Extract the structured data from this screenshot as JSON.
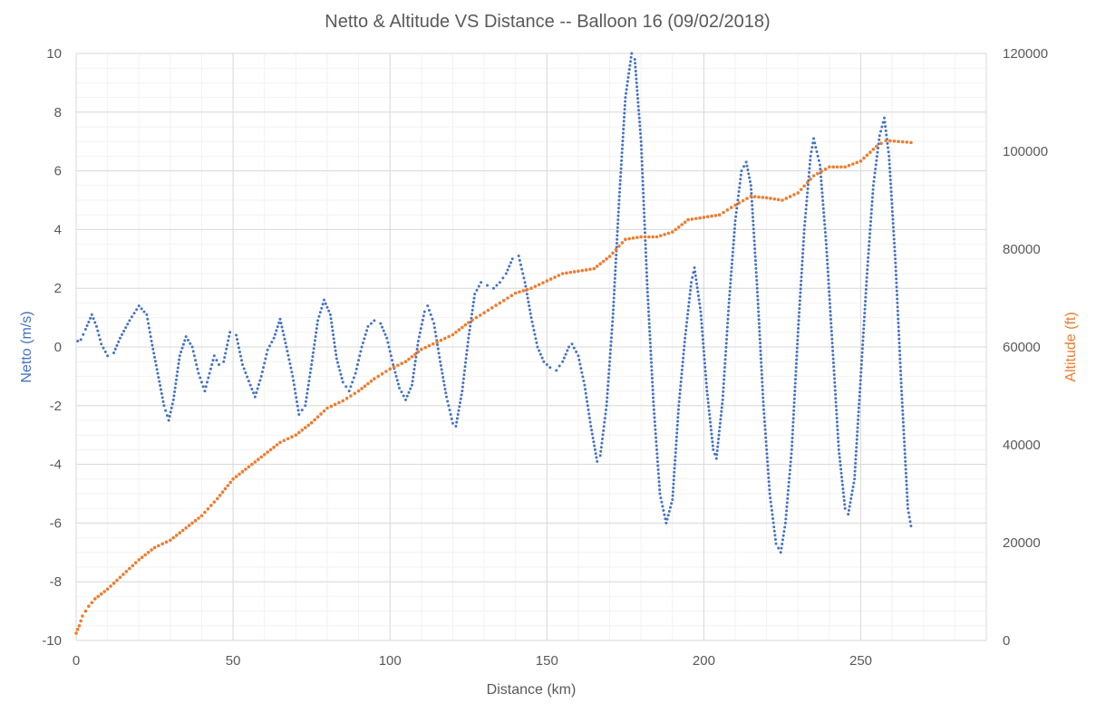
{
  "chart_data": {
    "type": "scatter",
    "title": "Netto & Altitude VS Distance -- Balloon 16 (09/02/2018)",
    "xlabel": "Distance (km)",
    "ylabel_left": "Netto (m/s)",
    "ylabel_right": "Altitude (ft)",
    "xlim": [
      0,
      290
    ],
    "ylim_left": [
      -10,
      10
    ],
    "ylim_right": [
      0,
      120000
    ],
    "x_ticks": [
      "0",
      "50",
      "100",
      "150",
      "200",
      "250"
    ],
    "y_left_ticks": [
      "-10",
      "-8",
      "-6",
      "-4",
      "-2",
      "0",
      "2",
      "4",
      "6",
      "8",
      "10"
    ],
    "y_right_ticks": [
      "0",
      "20000",
      "40000",
      "60000",
      "80000",
      "100000",
      "120000"
    ],
    "grid": true,
    "minor_grid": true,
    "legend": "none",
    "series": [
      {
        "axis": "left",
        "color": "#4472C4",
        "marker": "dot",
        "points": [
          [
            0.5,
            0.2
          ],
          [
            1.5,
            0.25
          ],
          [
            3,
            0.6
          ],
          [
            5,
            1.1
          ],
          [
            6.5,
            0.7
          ],
          [
            8,
            0.1
          ],
          [
            10,
            -0.3
          ],
          [
            12,
            -0.2
          ],
          [
            14,
            0.3
          ],
          [
            17,
            0.9
          ],
          [
            20,
            1.4
          ],
          [
            22.5,
            1.1
          ],
          [
            24,
            0.2
          ],
          [
            26,
            -0.9
          ],
          [
            28,
            -2.0
          ],
          [
            29.5,
            -2.5
          ],
          [
            31,
            -1.8
          ],
          [
            33,
            -0.3
          ],
          [
            35,
            0.35
          ],
          [
            37,
            0.0
          ],
          [
            39,
            -0.9
          ],
          [
            41,
            -1.5
          ],
          [
            42.5,
            -0.9
          ],
          [
            44,
            -0.3
          ],
          [
            45.5,
            -0.6
          ],
          [
            47,
            -0.5
          ],
          [
            49,
            0.5
          ],
          [
            51,
            0.4
          ],
          [
            53,
            -0.6
          ],
          [
            55.5,
            -1.3
          ],
          [
            57,
            -1.7
          ],
          [
            59,
            -1.0
          ],
          [
            61,
            -0.1
          ],
          [
            63,
            0.3
          ],
          [
            65,
            0.95
          ],
          [
            67,
            0.0
          ],
          [
            69,
            -1.0
          ],
          [
            71,
            -2.3
          ],
          [
            73,
            -2.0
          ],
          [
            75,
            -0.6
          ],
          [
            77,
            0.9
          ],
          [
            79,
            1.6
          ],
          [
            81,
            1.1
          ],
          [
            83,
            -0.4
          ],
          [
            85,
            -1.2
          ],
          [
            87,
            -1.5
          ],
          [
            89,
            -0.9
          ],
          [
            91,
            0.0
          ],
          [
            93,
            0.7
          ],
          [
            95,
            0.9
          ],
          [
            97,
            0.8
          ],
          [
            99,
            0.3
          ],
          [
            101,
            -0.6
          ],
          [
            103,
            -1.4
          ],
          [
            105,
            -1.8
          ],
          [
            107,
            -1.3
          ],
          [
            109,
            0.2
          ],
          [
            111,
            1.2
          ],
          [
            112,
            1.4
          ],
          [
            114,
            0.8
          ],
          [
            116,
            -0.5
          ],
          [
            118,
            -1.7
          ],
          [
            120,
            -2.6
          ],
          [
            121,
            -2.7
          ],
          [
            123,
            -1.5
          ],
          [
            125,
            0.3
          ],
          [
            127,
            1.8
          ],
          [
            129,
            2.2
          ],
          [
            131,
            2.1
          ],
          [
            133,
            2.0
          ],
          [
            135,
            2.2
          ],
          [
            137,
            2.5
          ],
          [
            139,
            3.0
          ],
          [
            141,
            3.1
          ],
          [
            143,
            2.2
          ],
          [
            145,
            1.0
          ],
          [
            147,
            0.0
          ],
          [
            149,
            -0.5
          ],
          [
            151,
            -0.7
          ],
          [
            153,
            -0.8
          ],
          [
            155,
            -0.5
          ],
          [
            157,
            0.0
          ],
          [
            158,
            0.1
          ],
          [
            160,
            -0.3
          ],
          [
            162,
            -1.3
          ],
          [
            164,
            -2.7
          ],
          [
            166,
            -3.9
          ],
          [
            167,
            -3.7
          ],
          [
            169,
            -2.0
          ],
          [
            171,
            1.0
          ],
          [
            173,
            5.0
          ],
          [
            175,
            8.5
          ],
          [
            177,
            10.0
          ],
          [
            178,
            9.8
          ],
          [
            180,
            7.0
          ],
          [
            182,
            2.0
          ],
          [
            184,
            -2.0
          ],
          [
            186,
            -5.0
          ],
          [
            188,
            -6.0
          ],
          [
            190,
            -5.2
          ],
          [
            192,
            -2.0
          ],
          [
            194,
            0.3
          ],
          [
            196,
            2.2
          ],
          [
            197,
            2.7
          ],
          [
            199,
            1.2
          ],
          [
            201,
            -1.5
          ],
          [
            203,
            -3.5
          ],
          [
            204,
            -3.8
          ],
          [
            206,
            -1.8
          ],
          [
            208,
            1.5
          ],
          [
            210,
            4.3
          ],
          [
            212,
            6.0
          ],
          [
            213.5,
            6.3
          ],
          [
            215,
            5.5
          ],
          [
            217,
            2.0
          ],
          [
            219,
            -2.0
          ],
          [
            221,
            -5.0
          ],
          [
            223,
            -6.7
          ],
          [
            224.5,
            -7.0
          ],
          [
            226,
            -6.0
          ],
          [
            228,
            -3.5
          ],
          [
            230,
            0.5
          ],
          [
            232,
            4.0
          ],
          [
            234,
            6.5
          ],
          [
            235,
            7.1
          ],
          [
            237,
            6.2
          ],
          [
            239,
            3.5
          ],
          [
            241,
            0.0
          ],
          [
            243,
            -3.5
          ],
          [
            245,
            -5.5
          ],
          [
            246,
            -5.7
          ],
          [
            248,
            -4.5
          ],
          [
            250,
            -1.0
          ],
          [
            252,
            2.5
          ],
          [
            254,
            5.5
          ],
          [
            256,
            7.2
          ],
          [
            257.5,
            7.8
          ],
          [
            259,
            6.5
          ],
          [
            261,
            3.0
          ],
          [
            263,
            -1.5
          ],
          [
            265,
            -5.5
          ],
          [
            266,
            -6.1
          ]
        ]
      },
      {
        "axis": "right",
        "color": "#ED7D31",
        "marker": "dot",
        "points": [
          [
            0,
            1500
          ],
          [
            1,
            3000
          ],
          [
            2,
            5000
          ],
          [
            4,
            7000
          ],
          [
            6,
            8500
          ],
          [
            10,
            10500
          ],
          [
            15,
            13500
          ],
          [
            20,
            16500
          ],
          [
            25,
            19000
          ],
          [
            30,
            20500
          ],
          [
            35,
            23000
          ],
          [
            40,
            25500
          ],
          [
            45,
            29000
          ],
          [
            50,
            33000
          ],
          [
            55,
            35500
          ],
          [
            60,
            38000
          ],
          [
            65,
            40500
          ],
          [
            70,
            42000
          ],
          [
            75,
            44500
          ],
          [
            80,
            47500
          ],
          [
            85,
            49000
          ],
          [
            90,
            51000
          ],
          [
            95,
            53500
          ],
          [
            100,
            55500
          ],
          [
            105,
            57000
          ],
          [
            110,
            59500
          ],
          [
            115,
            61000
          ],
          [
            120,
            62500
          ],
          [
            125,
            65000
          ],
          [
            130,
            67000
          ],
          [
            135,
            69000
          ],
          [
            140,
            71000
          ],
          [
            145,
            72000
          ],
          [
            150,
            73500
          ],
          [
            155,
            75000
          ],
          [
            160,
            75500
          ],
          [
            165,
            76000
          ],
          [
            170,
            78500
          ],
          [
            175,
            82000
          ],
          [
            180,
            82500
          ],
          [
            185,
            82500
          ],
          [
            190,
            83500
          ],
          [
            195,
            86000
          ],
          [
            200,
            86500
          ],
          [
            205,
            87000
          ],
          [
            210,
            89000
          ],
          [
            215,
            90800
          ],
          [
            220,
            90500
          ],
          [
            225,
            90000
          ],
          [
            230,
            91500
          ],
          [
            235,
            95000
          ],
          [
            240,
            96800
          ],
          [
            245,
            96800
          ],
          [
            250,
            98000
          ],
          [
            255,
            101000
          ],
          [
            258,
            102200
          ],
          [
            262,
            102000
          ],
          [
            266,
            101800
          ]
        ]
      }
    ]
  },
  "colors": {
    "netto": "#4472C4",
    "altitude": "#ED7D31",
    "axis_text": "#595959",
    "grid_major": "#D9D9D9",
    "grid_minor": "#F2F2F2"
  }
}
